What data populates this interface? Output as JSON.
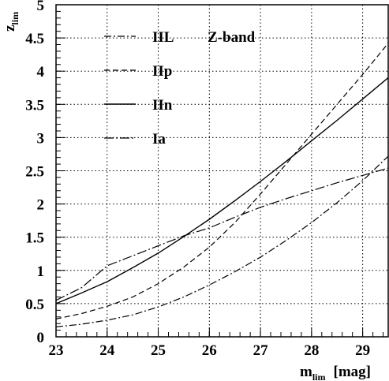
{
  "chart_data": {
    "type": "line",
    "title": "",
    "annotation": "Z-band",
    "xlabel": {
      "main": "m",
      "sub": "lim",
      "suffix": "[mag]"
    },
    "ylabel": {
      "main": "z",
      "sub": "lim"
    },
    "xlim": [
      23,
      29.5
    ],
    "ylim": [
      0,
      5
    ],
    "grid": true,
    "legend_position": "top-left",
    "x_ticks": [
      23,
      24,
      25,
      26,
      27,
      28,
      29
    ],
    "x_tick_labels": [
      "23",
      "24",
      "25",
      "26",
      "27",
      "28",
      "29"
    ],
    "y_ticks": [
      0,
      0.5,
      1,
      1.5,
      2,
      2.5,
      3,
      3.5,
      4,
      4.5,
      5
    ],
    "y_tick_labels": [
      "0",
      "0.5",
      "1",
      "1.5",
      "2",
      "2.5",
      "3",
      "3.5",
      "4",
      "4.5",
      "5"
    ],
    "series": [
      {
        "name": "IIL",
        "style": "dashdot",
        "points": [
          [
            23,
            0.15
          ],
          [
            23.5,
            0.19
          ],
          [
            24,
            0.25
          ],
          [
            24.5,
            0.33
          ],
          [
            25,
            0.45
          ],
          [
            25.5,
            0.6
          ],
          [
            26,
            0.78
          ],
          [
            26.5,
            0.98
          ],
          [
            27,
            1.2
          ],
          [
            27.5,
            1.45
          ],
          [
            28,
            1.72
          ],
          [
            28.5,
            2.02
          ],
          [
            29,
            2.35
          ],
          [
            29.5,
            2.72
          ]
        ]
      },
      {
        "name": "IIp",
        "style": "dashed",
        "points": [
          [
            23,
            0.27
          ],
          [
            23.5,
            0.35
          ],
          [
            24,
            0.46
          ],
          [
            24.5,
            0.6
          ],
          [
            25,
            0.8
          ],
          [
            25.5,
            1.05
          ],
          [
            26,
            1.35
          ],
          [
            26.5,
            1.72
          ],
          [
            27,
            2.15
          ],
          [
            27.5,
            2.6
          ],
          [
            28,
            3.05
          ],
          [
            28.5,
            3.5
          ],
          [
            29,
            3.95
          ],
          [
            29.5,
            4.42
          ]
        ]
      },
      {
        "name": "IIn",
        "style": "solid",
        "points": [
          [
            23,
            0.5
          ],
          [
            23.5,
            0.66
          ],
          [
            24,
            0.83
          ],
          [
            24.5,
            1.04
          ],
          [
            25,
            1.26
          ],
          [
            25.5,
            1.51
          ],
          [
            26,
            1.77
          ],
          [
            26.5,
            2.05
          ],
          [
            27,
            2.34
          ],
          [
            27.5,
            2.64
          ],
          [
            28,
            2.95
          ],
          [
            28.5,
            3.26
          ],
          [
            29,
            3.58
          ],
          [
            29.5,
            3.9
          ]
        ]
      },
      {
        "name": "Ia",
        "style": "longdashdot",
        "points": [
          [
            23,
            0.55
          ],
          [
            23.5,
            0.74
          ],
          [
            24,
            1.07
          ],
          [
            24.5,
            1.22
          ],
          [
            25,
            1.37
          ],
          [
            25.5,
            1.52
          ],
          [
            26,
            1.64
          ],
          [
            26.5,
            1.8
          ],
          [
            27,
            1.95
          ],
          [
            27.5,
            2.08
          ],
          [
            28,
            2.2
          ],
          [
            28.5,
            2.32
          ],
          [
            29,
            2.43
          ],
          [
            29.5,
            2.54
          ]
        ]
      }
    ]
  }
}
